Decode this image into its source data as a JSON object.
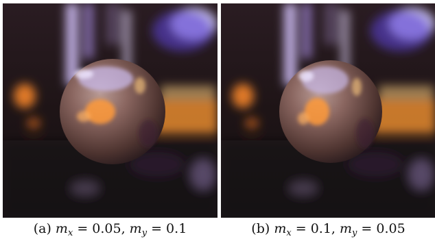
{
  "figures": [
    {
      "id": "a",
      "caption": {
        "prefix": "(a) ",
        "m_x_label": "m",
        "m_x_sub": "x",
        "m_x_value": " = 0.05, ",
        "m_y_label": "m",
        "m_y_sub": "y",
        "m_y_value": " = 0.1"
      }
    },
    {
      "id": "b",
      "caption": {
        "prefix": "(b) ",
        "m_x_label": "m",
        "m_x_sub": "x",
        "m_x_value": " = 0.1, ",
        "m_y_label": "m",
        "m_y_sub": "y",
        "m_y_value": " = 0.05"
      }
    }
  ],
  "colors": {
    "background_dark": "#1a1010",
    "bokeh_orange": "#ff9a3a",
    "bokeh_purple": "#b9a6ff",
    "sphere_base": "#6e5048",
    "sphere_highlight": "#c8b8e8"
  }
}
